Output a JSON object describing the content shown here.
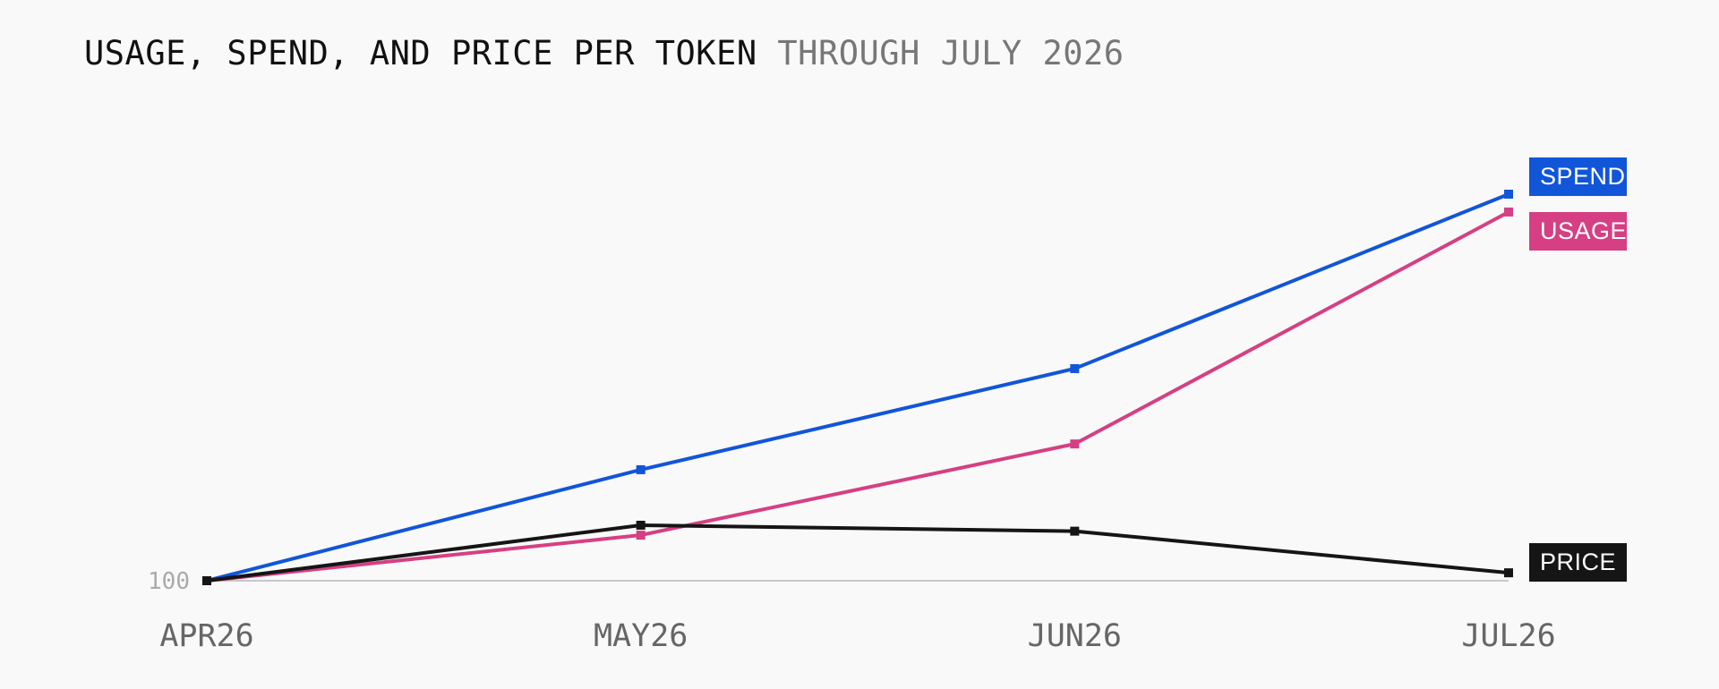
{
  "chart_data": {
    "type": "line",
    "title": "USAGE, SPEND, AND PRICE PER TOKEN",
    "subtitle": "THROUGH JULY 2026",
    "categories": [
      "APR26",
      "MAY26",
      "JUN26",
      "JUL26"
    ],
    "y_ticks": [
      {
        "value": 100,
        "label": "100"
      }
    ],
    "ylim": [
      100,
      295
    ],
    "grid": false,
    "legend": "right, inline at line ends",
    "series": [
      {
        "name": "SPEND",
        "color": "#1155d9",
        "values": [
          100,
          156,
          207,
          295
        ]
      },
      {
        "name": "USAGE",
        "color": "#d63f83",
        "values": [
          100,
          123,
          169,
          286
        ]
      },
      {
        "name": "PRICE",
        "color": "#151515",
        "values": [
          100,
          128,
          125,
          104
        ]
      }
    ]
  }
}
